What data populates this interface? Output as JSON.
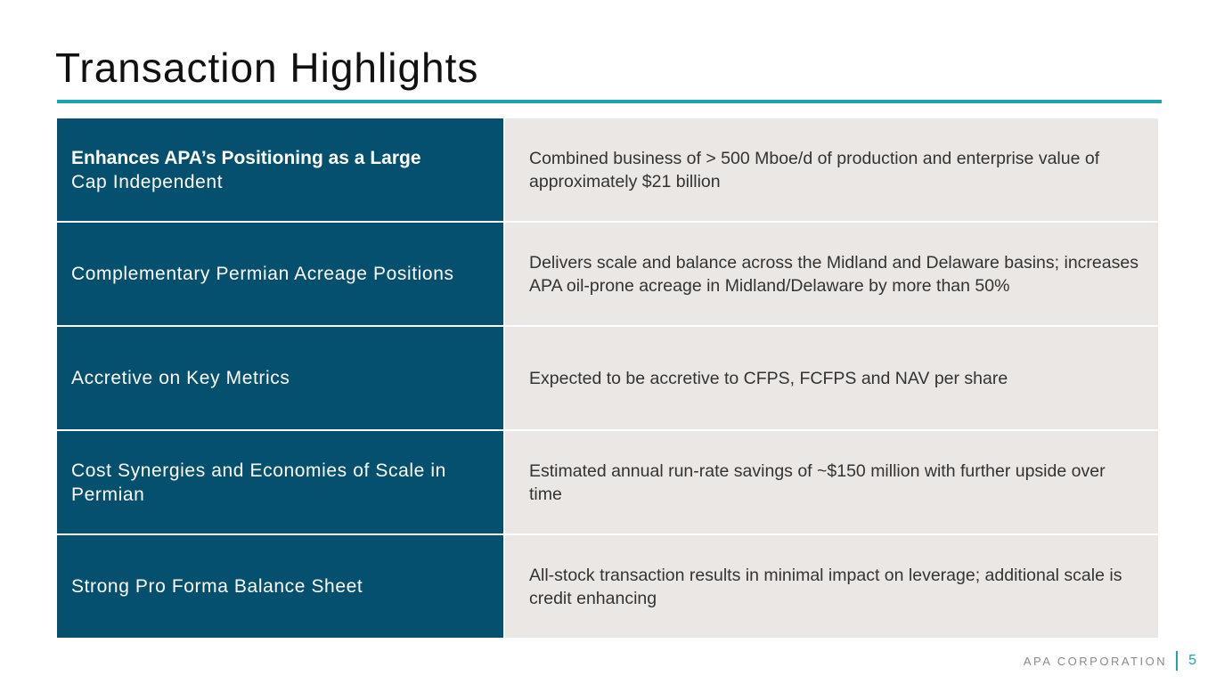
{
  "title": "Transaction Highlights",
  "colors": {
    "accent": "#1aa3b5",
    "label_bg": "#05506e",
    "desc_bg": "#ebe7e4"
  },
  "rows": [
    {
      "label_bold": "Enhances APA’s Positioning as a Large",
      "label": "Cap Independent",
      "description": "Combined business of > 500 Mboe/d of production and enterprise value of approximately $21 billion"
    },
    {
      "label_bold": "",
      "label": "Complementary Permian Acreage Positions",
      "description": "Delivers scale and balance across the Midland and Delaware basins; increases APA oil-prone acreage in Midland/Delaware by more than 50%"
    },
    {
      "label_bold": "",
      "label": "Accretive on Key Metrics",
      "description": "Expected to be accretive to CFPS, FCFPS and NAV per share"
    },
    {
      "label_bold": "",
      "label": "Cost Synergies and Economies of Scale in Permian",
      "description": "Estimated annual run-rate savings of ~$150 million with further upside over time"
    },
    {
      "label_bold": "",
      "label": "Strong Pro Forma Balance Sheet",
      "description": "All-stock transaction results in minimal impact on leverage; additional scale is credit enhancing"
    }
  ],
  "footer": {
    "company": "APA CORPORATION",
    "page_number": "5"
  }
}
